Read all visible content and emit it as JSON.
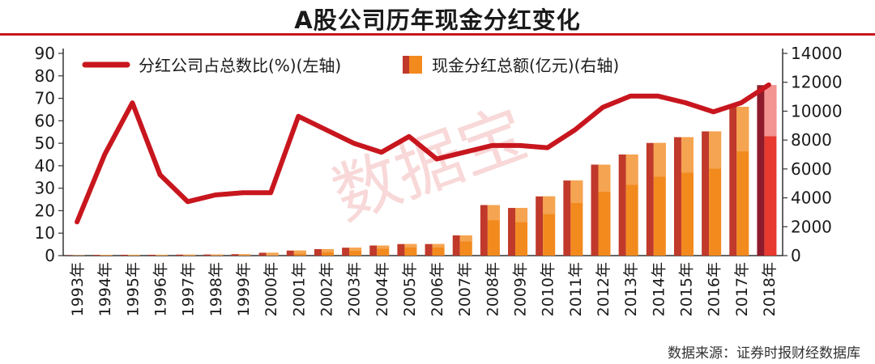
{
  "title": "A股公司历年现金分红变化",
  "source": "数据来源：证券时报财经数据库",
  "watermark": "数据宝",
  "colors": {
    "line": "#c8161e",
    "bar_front": "#f28a1e",
    "bar_side": "#c0392b",
    "bar_highlight_front": "#e83a2e",
    "bar_highlight_side": "#8e1b2b",
    "bar_highlight_top": "#f5a3a3",
    "rule": "#c8161e",
    "watermark": "#f2b8b8"
  },
  "chart_data": {
    "type": "bar+line",
    "categories": [
      "1993年",
      "1994年",
      "1995年",
      "1996年",
      "1997年",
      "1998年",
      "1999年",
      "2000年",
      "2001年",
      "2002年",
      "2003年",
      "2004年",
      "2005年",
      "2006年",
      "2007年",
      "2008年",
      "2009年",
      "2010年",
      "2011年",
      "2012年",
      "2013年",
      "2014年",
      "2015年",
      "2016年",
      "2017年",
      "2018年"
    ],
    "series": [
      {
        "name": "分红公司占总数比(%)(左轴)",
        "type": "line",
        "axis": "left",
        "values": [
          15,
          45,
          68,
          36,
          24,
          27,
          28,
          28,
          62,
          56,
          50,
          46,
          53,
          43,
          46,
          49,
          49,
          48,
          56,
          66,
          71,
          71,
          68,
          64,
          68,
          76
        ]
      },
      {
        "name": "现金分红总额(亿元)(右轴)",
        "type": "bar",
        "axis": "right",
        "values": [
          20,
          50,
          60,
          60,
          70,
          80,
          100,
          200,
          350,
          450,
          550,
          700,
          800,
          800,
          1400,
          3500,
          3300,
          4100,
          5200,
          6300,
          7000,
          7800,
          8200,
          8600,
          10300,
          11800
        ]
      }
    ],
    "y_left": {
      "ticks": [
        "0",
        "10",
        "20",
        "30",
        "40",
        "50",
        "60",
        "70",
        "80",
        "90"
      ],
      "range": [
        0,
        90
      ]
    },
    "y_right": {
      "ticks": [
        "0",
        "2000",
        "4000",
        "6000",
        "8000",
        "10000",
        "12000",
        "14000"
      ],
      "range": [
        0,
        14000
      ]
    },
    "legend_position": "top-left",
    "grid": false
  }
}
